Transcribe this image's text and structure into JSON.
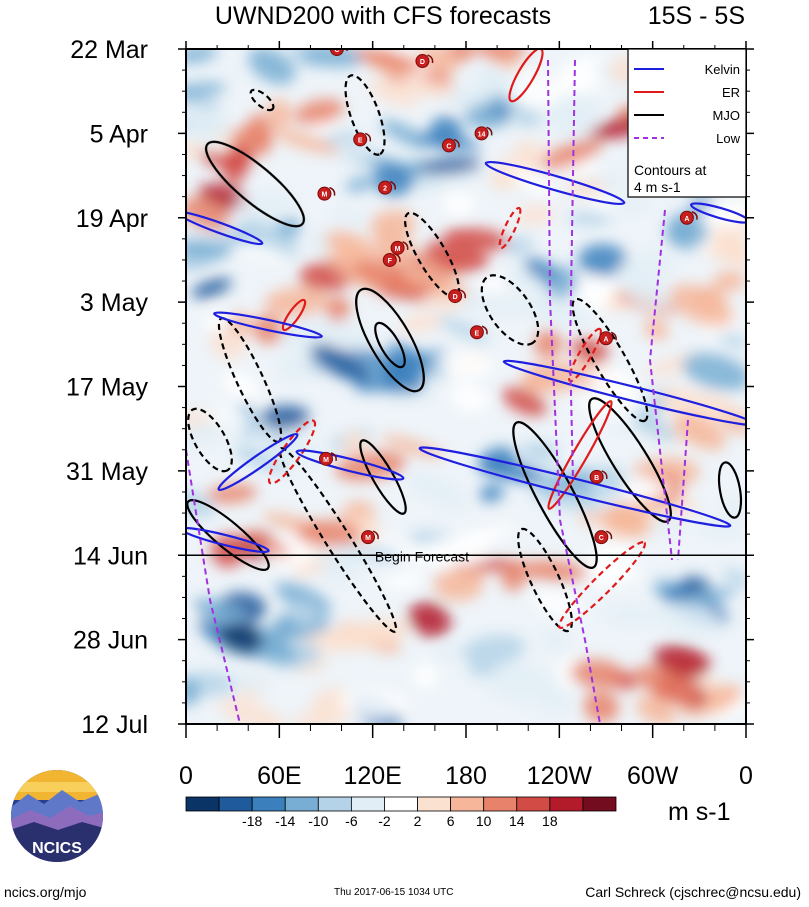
{
  "chart_data": {
    "type": "heatmap",
    "title": "UWND200 with CFS forecasts",
    "subtitle": "15S - 5S",
    "x": {
      "ticks": [
        "0",
        "60E",
        "120E",
        "180",
        "120W",
        "60W",
        "0"
      ],
      "tick_values_deg": [
        0,
        60,
        120,
        180,
        240,
        300,
        360
      ],
      "range_deg": [
        0,
        360
      ]
    },
    "y": {
      "ticks": [
        "22 Mar",
        "5 Apr",
        "19 Apr",
        "3 May",
        "17 May",
        "31 May",
        "14 Jun",
        "28 Jun",
        "12 Jul"
      ],
      "range": [
        "2017-03-22",
        "2017-07-12"
      ]
    },
    "forecast_start": "2017-06-14",
    "forecast_label": "Begin Forecast",
    "colorbar": {
      "labels": [
        "-18",
        "-14",
        "-10",
        "-6",
        "-2",
        "2",
        "6",
        "10",
        "14",
        "18"
      ],
      "units": "m s-1",
      "colors": [
        "#0a3366",
        "#1f5a9c",
        "#3b80bd",
        "#78aed3",
        "#b5d3e8",
        "#e2eef6",
        "#ffffff",
        "#fbe1d0",
        "#f6b69a",
        "#e8826a",
        "#d24b45",
        "#b31b2b",
        "#730c1e"
      ]
    },
    "legend": {
      "placement": "top-right",
      "entries": [
        {
          "name": "Kelvin",
          "color": "#1f1fe0",
          "dash": "solid"
        },
        {
          "name": "ER",
          "color": "#e01a1a",
          "dash": "solid"
        },
        {
          "name": "MJO",
          "color": "#000000",
          "dash": "solid"
        },
        {
          "name": "Low",
          "color": "#a030e0",
          "dash": "dashed"
        }
      ],
      "note_lines": [
        "Contours at",
        "4 m s-1"
      ]
    },
    "storm_markers": [
      {
        "label": "C",
        "lon": 97,
        "date": "2017-03-22"
      },
      {
        "label": "D",
        "lon": 152,
        "date": "2017-03-24"
      },
      {
        "label": "E",
        "lon": 112,
        "date": "2017-04-06"
      },
      {
        "label": "14",
        "lon": 190,
        "date": "2017-04-05"
      },
      {
        "label": "C",
        "lon": 169,
        "date": "2017-04-07"
      },
      {
        "label": "M",
        "lon": 89,
        "date": "2017-04-15"
      },
      {
        "label": "2",
        "lon": 128,
        "date": "2017-04-14"
      },
      {
        "label": "A",
        "lon": 322,
        "date": "2017-04-19"
      },
      {
        "label": "M",
        "lon": 136,
        "date": "2017-04-24"
      },
      {
        "label": "F",
        "lon": 131,
        "date": "2017-04-26"
      },
      {
        "label": "D",
        "lon": 173,
        "date": "2017-05-02"
      },
      {
        "label": "E",
        "lon": 187,
        "date": "2017-05-08"
      },
      {
        "label": "A",
        "lon": 270,
        "date": "2017-05-09"
      },
      {
        "label": "M",
        "lon": 90,
        "date": "2017-05-29"
      },
      {
        "label": "B",
        "lon": 264,
        "date": "2017-06-01"
      },
      {
        "label": "M",
        "lon": 117,
        "date": "2017-06-11"
      },
      {
        "label": "C",
        "lon": 267,
        "date": "2017-06-11"
      }
    ]
  },
  "footer": {
    "left": "ncics.org/mjo",
    "middle": "Thu 2017-06-15 1034 UTC",
    "right": "Carl Schreck (cjschrec@ncsu.edu)"
  },
  "logo": {
    "text": "NCICS"
  }
}
